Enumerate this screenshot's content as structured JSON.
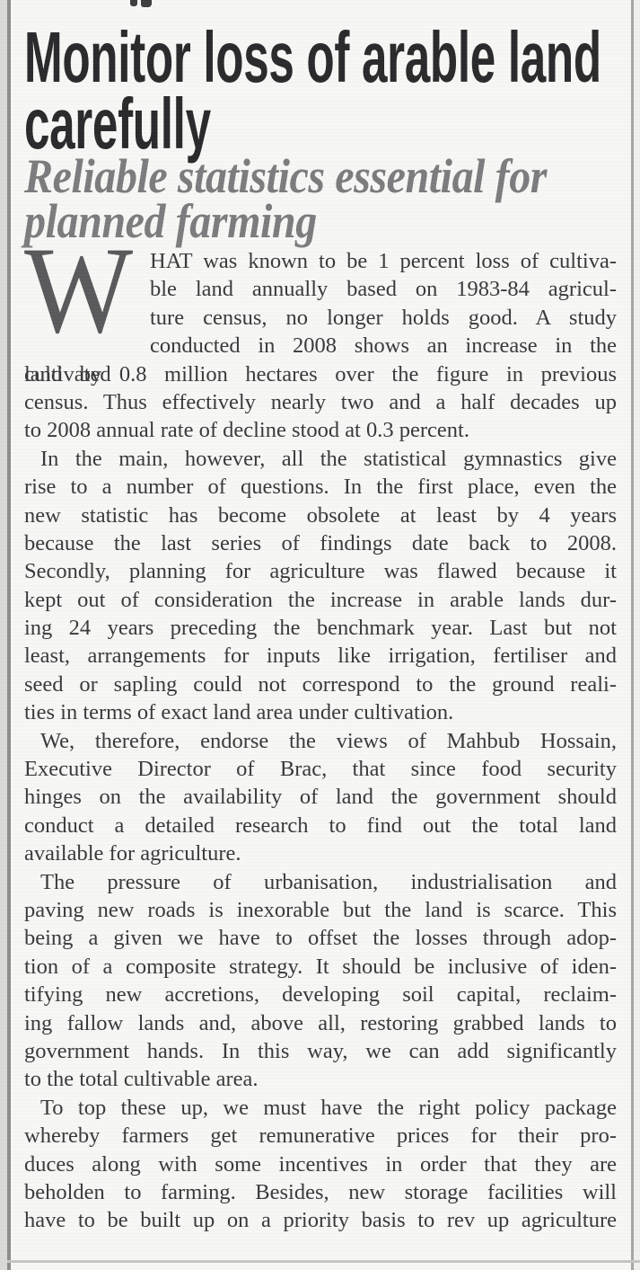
{
  "article": {
    "headline_lines": [
      "Monitor loss of arable land",
      "carefully"
    ],
    "subheadline_lines": [
      "Reliable statistics essential for",
      "planned farming"
    ],
    "paragraphs": [
      {
        "drop_cap": "W",
        "indent": false,
        "lines": [
          "HAT was known to be 1 percent loss of cultiva-",
          "ble land annually based on 1983-84 agricul-",
          "ture census, no longer holds good. A study",
          "conducted in 2008 shows an increase in the cultivated",
          "land by 0.8 million hectares over the figure in previous",
          "census. Thus effectively nearly two and a half decades up",
          "to 2008 annual rate of decline stood at 0.3 percent."
        ]
      },
      {
        "indent": true,
        "lines": [
          "In the main, however, all the statistical gymnastics give",
          "rise to a number of questions. In the first place, even the",
          "new statistic has become obsolete at least by 4 years",
          "because the last series of findings date back to 2008.",
          "Secondly, planning for agriculture was flawed because it",
          "kept out of consideration the increase in arable lands dur-",
          "ing 24 years preceding the benchmark year. Last but not",
          "least, arrangements for inputs like irrigation, fertiliser and",
          "seed or sapling could not correspond to the ground reali-",
          "ties in terms of exact land area under cultivation."
        ]
      },
      {
        "indent": true,
        "lines": [
          "We, therefore, endorse the views of Mahbub Hossain,",
          "Executive Director of Brac, that since food security",
          "hinges on the availability of land the government should",
          "conduct a detailed research to find out the total land",
          "available for agriculture."
        ]
      },
      {
        "indent": true,
        "lines": [
          "The pressure of urbanisation, industrialisation and",
          "paving new roads is inexorable but the land is scarce. This",
          "being a given we have to offset the losses through adop-",
          "tion of a composite strategy. It should be inclusive of iden-",
          "tifying new accretions, developing soil capital, reclaim-",
          "ing fallow lands and, above all, restoring grabbed lands to",
          "government hands. In this way, we can add significantly",
          "to the total cultivable area."
        ]
      },
      {
        "indent": true,
        "fill_last": true,
        "lines": [
          "To top these up, we must have the right policy package",
          "whereby farmers get remunerative prices for their pro-",
          "duces along with some incentives in order that they are",
          "beholden to farming. Besides, new storage facilities will",
          "have to be built up on a priority basis to rev up agriculture"
        ]
      }
    ]
  },
  "colors": {
    "headline": "#2b2b2d",
    "subheadline": "#7c7c7e",
    "body_text": "#3a3a3c",
    "drop_cap": "#5a5a5c",
    "background": "#f7f7f5",
    "rule_dark": "#8d8d8b",
    "rule_mid": "#a6a6a4",
    "rule_light": "#c5c5c3",
    "edge_strip": "#dadad8"
  }
}
